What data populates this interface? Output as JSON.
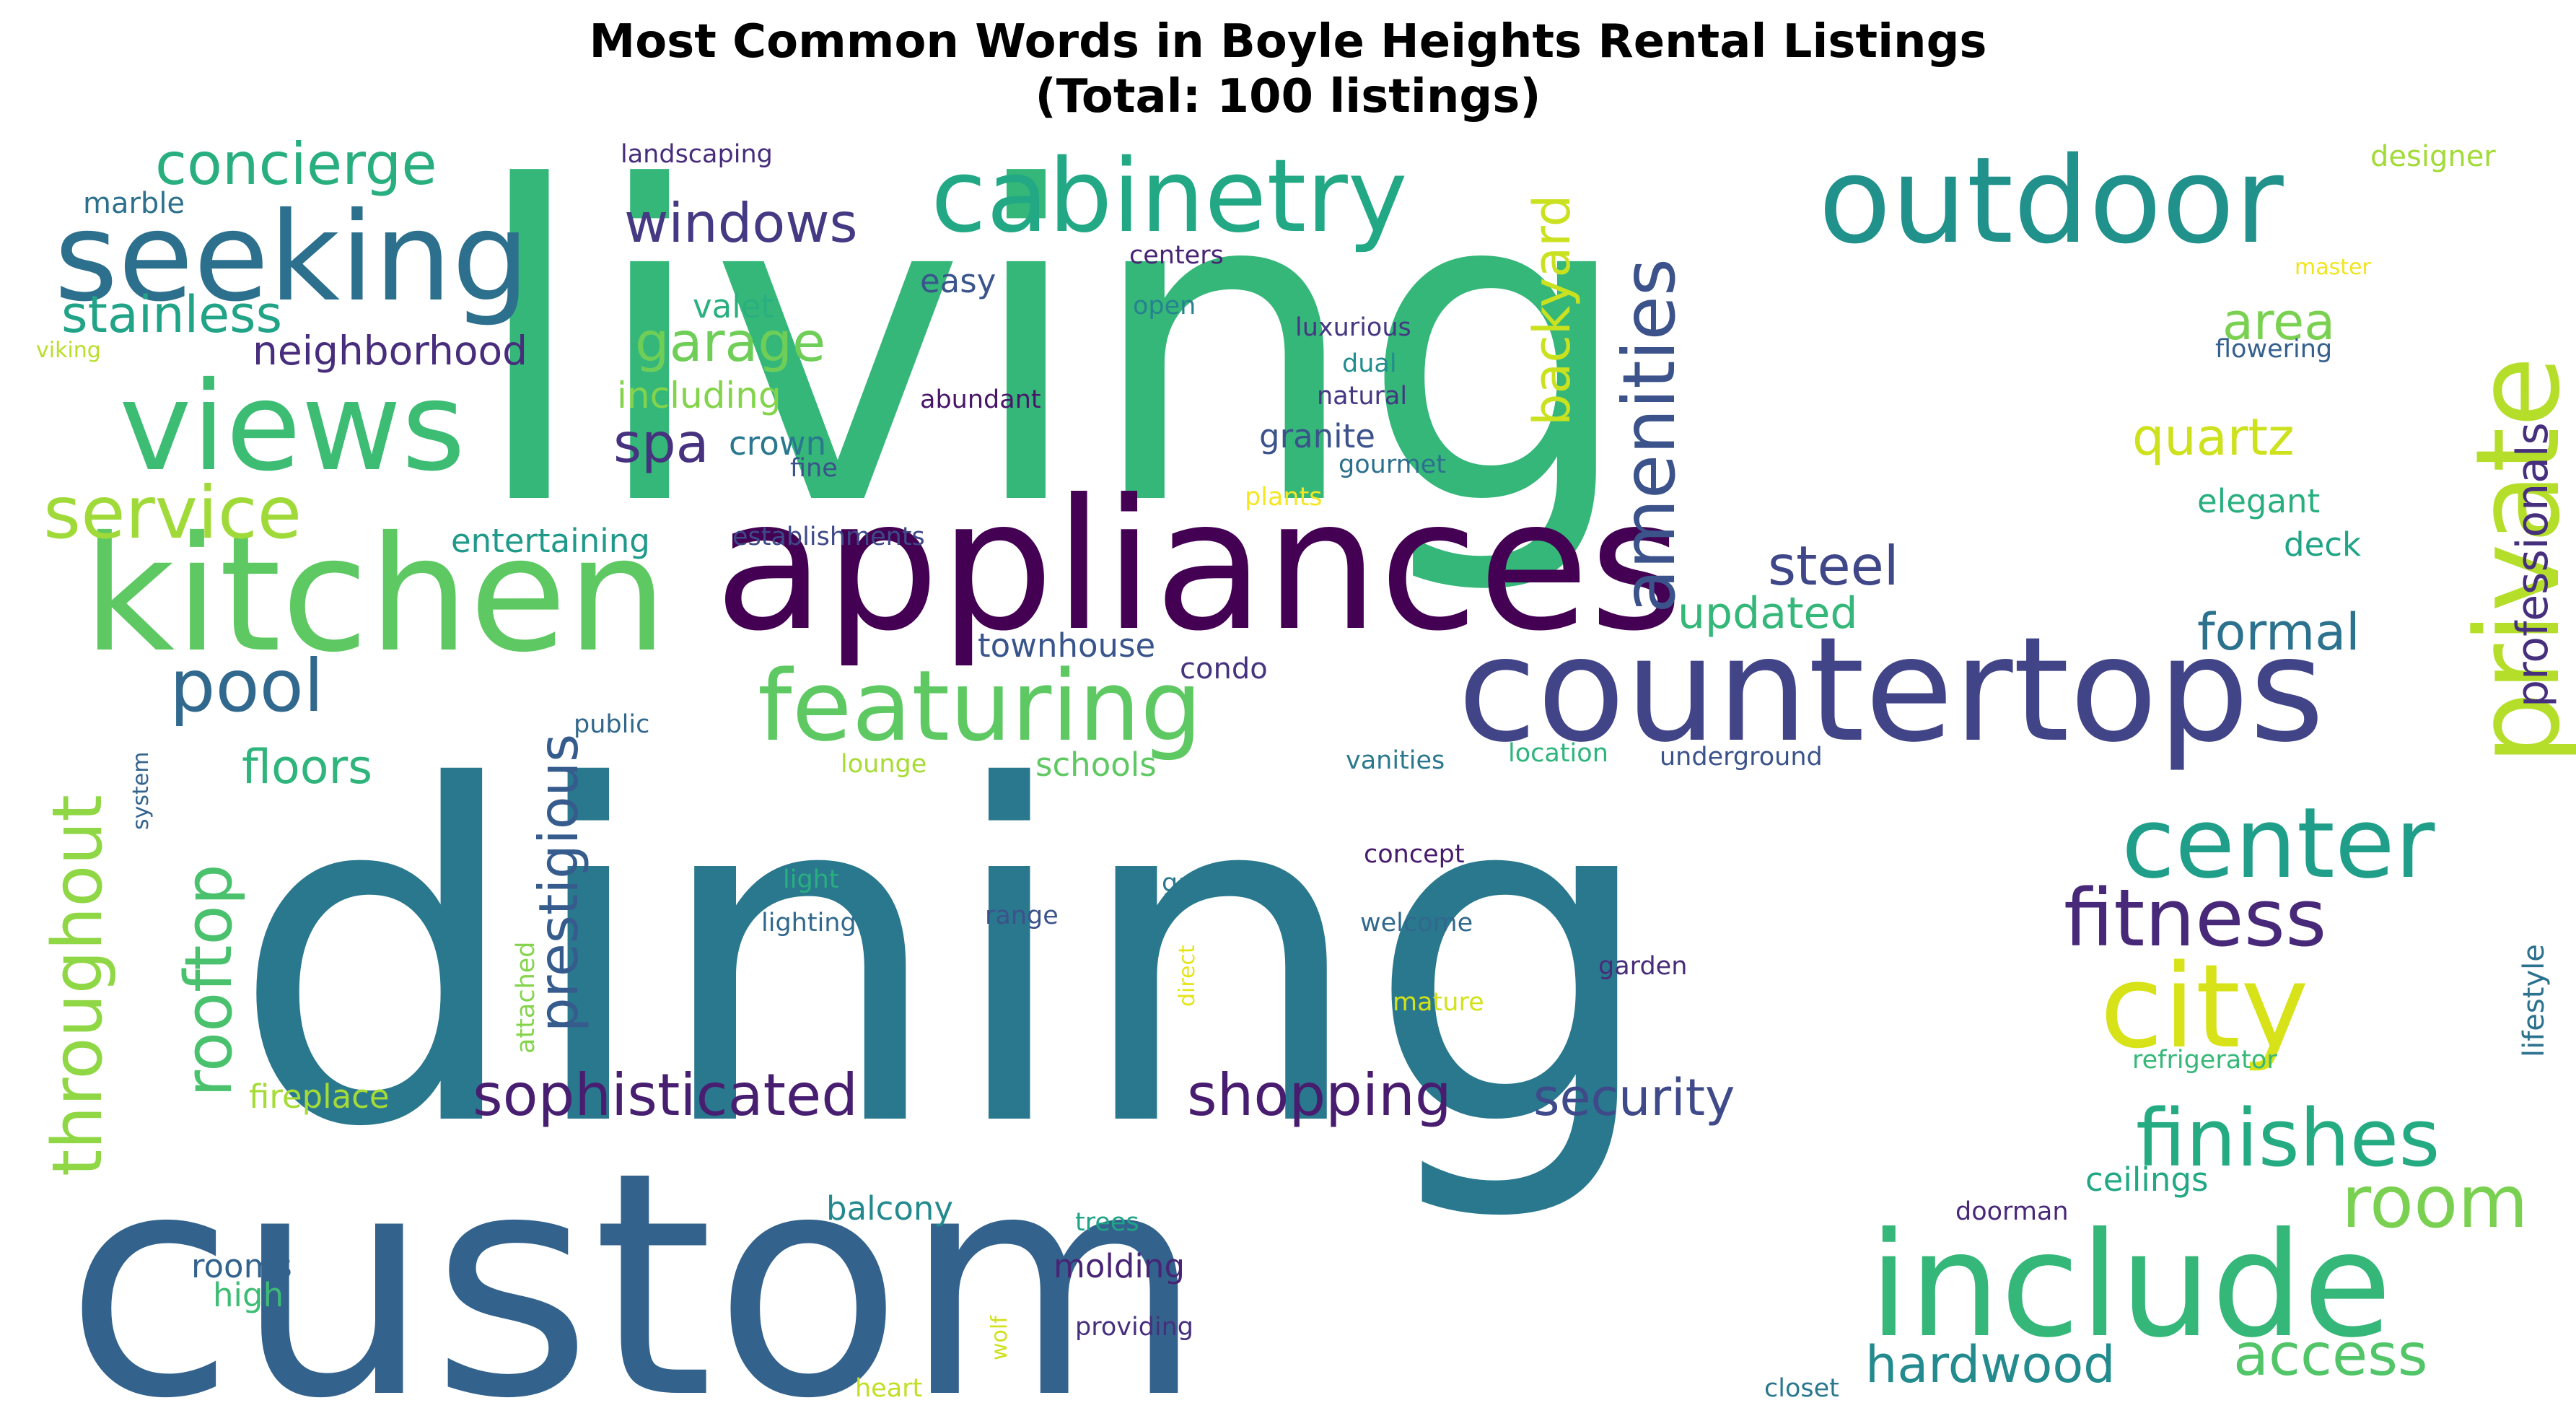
{
  "chart_title": {
    "line1": "Most Common Words in Boyle Heights Rental Listings",
    "line2": "(Total: 100 listings)"
  },
  "colormap": "viridis",
  "words": [
    {
      "text": "living",
      "color": "#35b779",
      "rotate": 0
    },
    {
      "text": "dining",
      "color": "#2a788e",
      "rotate": 0
    },
    {
      "text": "custom",
      "color": "#33638d",
      "rotate": 0
    },
    {
      "text": "appliances",
      "color": "#440154",
      "rotate": 0
    },
    {
      "text": "kitchen",
      "color": "#5ec962",
      "rotate": 0
    },
    {
      "text": "views",
      "color": "#3dbc74",
      "rotate": 0
    },
    {
      "text": "seeking",
      "color": "#2d708e",
      "rotate": 0
    },
    {
      "text": "outdoor",
      "color": "#21918c",
      "rotate": 0
    },
    {
      "text": "cabinetry",
      "color": "#22a884",
      "rotate": 0
    },
    {
      "text": "countertops",
      "color": "#414487",
      "rotate": 0
    },
    {
      "text": "include",
      "color": "#35b779",
      "rotate": 0
    },
    {
      "text": "private",
      "color": "#b5de2b",
      "rotate": 270
    },
    {
      "text": "featuring",
      "color": "#5ec962",
      "rotate": 0
    },
    {
      "text": "center",
      "color": "#1f9e89",
      "rotate": 0
    },
    {
      "text": "city",
      "color": "#d8e219",
      "rotate": 0
    },
    {
      "text": "fitness",
      "color": "#482878",
      "rotate": 0
    },
    {
      "text": "finishes",
      "color": "#25ab82",
      "rotate": 0
    },
    {
      "text": "room",
      "color": "#7ad151",
      "rotate": 0
    },
    {
      "text": "amenities",
      "color": "#3b528b",
      "rotate": 270
    },
    {
      "text": "service",
      "color": "#a0da39",
      "rotate": 0
    },
    {
      "text": "concierge",
      "color": "#29af7f",
      "rotate": 0
    },
    {
      "text": "pool",
      "color": "#31688e",
      "rotate": 0
    },
    {
      "text": "windows",
      "color": "#443983",
      "rotate": 0
    },
    {
      "text": "stainless",
      "color": "#20a386",
      "rotate": 0
    },
    {
      "text": "garage",
      "color": "#6ece58",
      "rotate": 0
    },
    {
      "text": "neighborhood",
      "color": "#472d7b",
      "rotate": 0
    },
    {
      "text": "spa",
      "color": "#46327e",
      "rotate": 0
    },
    {
      "text": "throughout",
      "color": "#8fd744",
      "rotate": 270
    },
    {
      "text": "rooftop",
      "color": "#4ac16d",
      "rotate": 270
    },
    {
      "text": "floors",
      "color": "#2fb47c",
      "rotate": 0
    },
    {
      "text": "prestigious",
      "color": "#365c8d",
      "rotate": 270
    },
    {
      "text": "sophisticated",
      "color": "#481f70",
      "rotate": 0
    },
    {
      "text": "shopping",
      "color": "#481c6e",
      "rotate": 0
    },
    {
      "text": "security",
      "color": "#3e4a89",
      "rotate": 0
    },
    {
      "text": "hardwood",
      "color": "#238a8d",
      "rotate": 0
    },
    {
      "text": "access",
      "color": "#52c569",
      "rotate": 0
    },
    {
      "text": "backyard",
      "color": "#cae11f",
      "rotate": 270
    },
    {
      "text": "area",
      "color": "#7ad151",
      "rotate": 0
    },
    {
      "text": "quartz",
      "color": "#cde11d",
      "rotate": 0
    },
    {
      "text": "steel",
      "color": "#3f4788",
      "rotate": 0
    },
    {
      "text": "updated",
      "color": "#35b779",
      "rotate": 0
    },
    {
      "text": "formal",
      "color": "#2c728e",
      "rotate": 0
    },
    {
      "text": "professionals",
      "color": "#46307e",
      "rotate": 270
    },
    {
      "text": "granite",
      "color": "#3b528b",
      "rotate": 0
    },
    {
      "text": "including",
      "color": "#84d44b",
      "rotate": 0
    },
    {
      "text": "valet",
      "color": "#2ab07f",
      "rotate": 0
    },
    {
      "text": "crown",
      "color": "#2a788e",
      "rotate": 0
    },
    {
      "text": "entertaining",
      "color": "#1f9a8a",
      "rotate": 0
    },
    {
      "text": "establishments",
      "color": "#3e4989",
      "rotate": 0
    },
    {
      "text": "townhouse",
      "color": "#39558c",
      "rotate": 0
    },
    {
      "text": "condo",
      "color": "#46337f",
      "rotate": 0
    },
    {
      "text": "schools",
      "color": "#5ec962",
      "rotate": 0
    },
    {
      "text": "fireplace",
      "color": "#a5db36",
      "rotate": 0
    },
    {
      "text": "balcony",
      "color": "#23898e",
      "rotate": 0
    },
    {
      "text": "rooms",
      "color": "#33638d",
      "rotate": 0
    },
    {
      "text": "high",
      "color": "#3dbc74",
      "rotate": 0
    },
    {
      "text": "molding",
      "color": "#482475",
      "rotate": 0
    },
    {
      "text": "ceilings",
      "color": "#22a884",
      "rotate": 0
    },
    {
      "text": "elegant",
      "color": "#29af7f",
      "rotate": 0
    },
    {
      "text": "deck",
      "color": "#20a486",
      "rotate": 0
    },
    {
      "text": "designer",
      "color": "#a2da37",
      "rotate": 0
    },
    {
      "text": "marble",
      "color": "#2d708e",
      "rotate": 0
    },
    {
      "text": "landscaping",
      "color": "#472d7b",
      "rotate": 0
    },
    {
      "text": "easy",
      "color": "#39558c",
      "rotate": 0
    },
    {
      "text": "centers",
      "color": "#482475",
      "rotate": 0
    },
    {
      "text": "open",
      "color": "#26828e",
      "rotate": 0
    },
    {
      "text": "luxurious",
      "color": "#453882",
      "rotate": 0
    },
    {
      "text": "dual",
      "color": "#228d8d",
      "rotate": 0
    },
    {
      "text": "natural",
      "color": "#453781",
      "rotate": 0
    },
    {
      "text": "abundant",
      "color": "#481668",
      "rotate": 0
    },
    {
      "text": "viking",
      "color": "#b8de29",
      "rotate": 0
    },
    {
      "text": "master",
      "color": "#f1e51d",
      "rotate": 0
    },
    {
      "text": "flowering",
      "color": "#355f8d",
      "rotate": 0
    },
    {
      "text": "fine",
      "color": "#3b528b",
      "rotate": 0
    },
    {
      "text": "gourmet",
      "color": "#2d708e",
      "rotate": 0
    },
    {
      "text": "plants",
      "color": "#f6e620",
      "rotate": 0
    },
    {
      "text": "public",
      "color": "#31688e",
      "rotate": 0
    },
    {
      "text": "lounge",
      "color": "#a8db34",
      "rotate": 0
    },
    {
      "text": "system",
      "color": "#33638d",
      "rotate": 270
    },
    {
      "text": "vanities",
      "color": "#2a788e",
      "rotate": 0
    },
    {
      "text": "location",
      "color": "#2fb47c",
      "rotate": 0
    },
    {
      "text": "underground",
      "color": "#3b528b",
      "rotate": 0
    },
    {
      "text": "light",
      "color": "#29af7f",
      "rotate": 0
    },
    {
      "text": "lighting",
      "color": "#31688e",
      "rotate": 0
    },
    {
      "text": "gated",
      "color": "#2a788e",
      "rotate": 0
    },
    {
      "text": "concept",
      "color": "#481a6c",
      "rotate": 0
    },
    {
      "text": "welcome",
      "color": "#31688e",
      "rotate": 0
    },
    {
      "text": "range",
      "color": "#3b528b",
      "rotate": 0
    },
    {
      "text": "attached",
      "color": "#84d44b",
      "rotate": 270
    },
    {
      "text": "direct",
      "color": "#e5e419",
      "rotate": 270
    },
    {
      "text": "garden",
      "color": "#472c7a",
      "rotate": 0
    },
    {
      "text": "mature",
      "color": "#d2e21b",
      "rotate": 0
    },
    {
      "text": "lifestyle",
      "color": "#2c728e",
      "rotate": 270
    },
    {
      "text": "refrigerator",
      "color": "#37b878",
      "rotate": 0
    },
    {
      "text": "doorman",
      "color": "#482878",
      "rotate": 0
    },
    {
      "text": "trees",
      "color": "#20a386",
      "rotate": 0
    },
    {
      "text": "providing",
      "color": "#472f7d",
      "rotate": 0
    },
    {
      "text": "wolf",
      "color": "#d0e11c",
      "rotate": 270
    },
    {
      "text": "heart",
      "color": "#c0df25",
      "rotate": 0
    },
    {
      "text": "closet",
      "color": "#2a788e",
      "rotate": 0
    }
  ]
}
